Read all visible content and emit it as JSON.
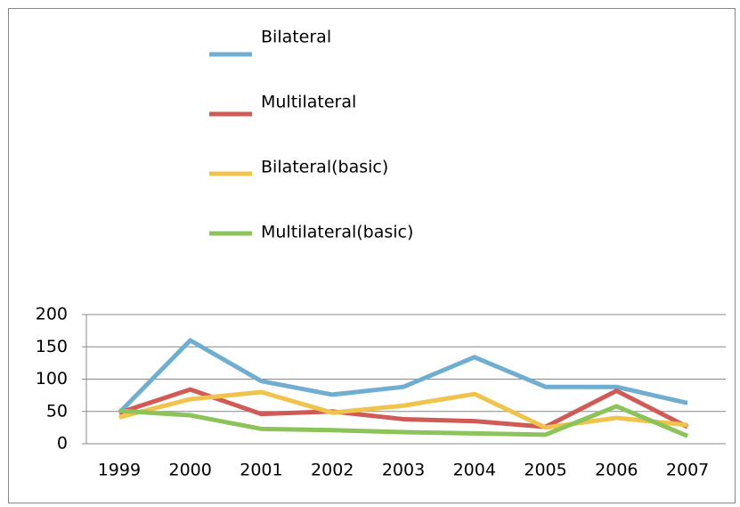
{
  "chart_data": {
    "type": "line",
    "categories": [
      "1999",
      "2000",
      "2001",
      "2002",
      "2003",
      "2004",
      "2005",
      "2006",
      "2007"
    ],
    "series": [
      {
        "name": "Bilateral",
        "color": "#6faed0",
        "values": [
          48,
          160,
          97,
          76,
          88,
          134,
          88,
          88,
          63
        ]
      },
      {
        "name": "Multilateral",
        "color": "#d05a56",
        "values": [
          48,
          84,
          46,
          50,
          38,
          35,
          26,
          82,
          26
        ]
      },
      {
        "name": "Bilateral(basic)",
        "color": "#f0c44c",
        "values": [
          41,
          69,
          80,
          48,
          59,
          77,
          25,
          40,
          29
        ]
      },
      {
        "name": "Multilateral(basic)",
        "color": "#8cc35a",
        "values": [
          51,
          44,
          23,
          21,
          18,
          16,
          14,
          58,
          12
        ]
      }
    ],
    "ylim": [
      0,
      200
    ],
    "yticks": [
      0,
      50,
      100,
      150,
      200
    ],
    "grid": true,
    "legend": "top"
  }
}
